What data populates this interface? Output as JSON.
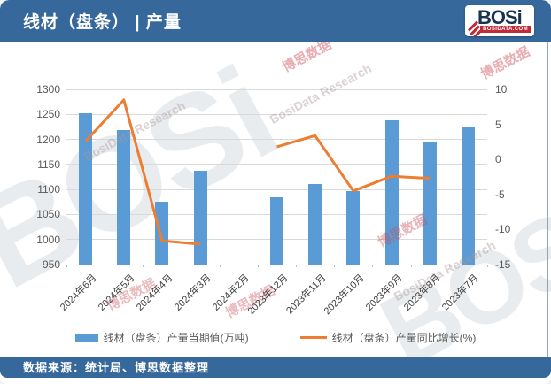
{
  "header": {
    "title": "线材（盘条） | 产量",
    "logo": {
      "text": "BOSi",
      "sub": "BOSIDATA.COM"
    }
  },
  "footer": {
    "source": "数据来源：统计局、博思数据整理"
  },
  "watermark": {
    "brand": "BOSi",
    "cn": "博思数据",
    "en": "BosiData Research"
  },
  "colors": {
    "header_blue": "#36689B",
    "bar_blue": "#5B9BD5",
    "line_orange": "#ED7D31",
    "gridline": "#D9D9D9",
    "axis_text": "#595959"
  },
  "chart_data": {
    "type": "bar",
    "subtype": "bar+line dual axis",
    "categories": [
      "2024年6月",
      "2024年5月",
      "2024年4月",
      "2024年3月",
      "2024年2月",
      "2023年12月",
      "2023年11月",
      "2023年10月",
      "2023年9月",
      "2023年8月",
      "2023年7月"
    ],
    "series": [
      {
        "name": "线材（盘条）产量当期值(万吨)",
        "type": "bar",
        "axis": "left",
        "color": "#5B9BD5",
        "values": [
          1252,
          1218,
          1076,
          1138,
          null,
          1084,
          1111,
          1097,
          1239,
          1195,
          1226
        ]
      },
      {
        "name": "线材（盘条）产量同比增长(%)",
        "type": "line",
        "axis": "right",
        "color": "#ED7D31",
        "values": [
          2.6,
          8.5,
          -11.6,
          -12.1,
          null,
          1.8,
          3.4,
          -4.5,
          -2.4,
          -2.7,
          null
        ]
      }
    ],
    "left_axis": {
      "min": 950,
      "max": 1300,
      "step": 50
    },
    "right_axis": {
      "min": -15,
      "max": 10,
      "step": 5
    },
    "grid": true,
    "legend_position": "bottom",
    "x_label_rotation": -45
  }
}
